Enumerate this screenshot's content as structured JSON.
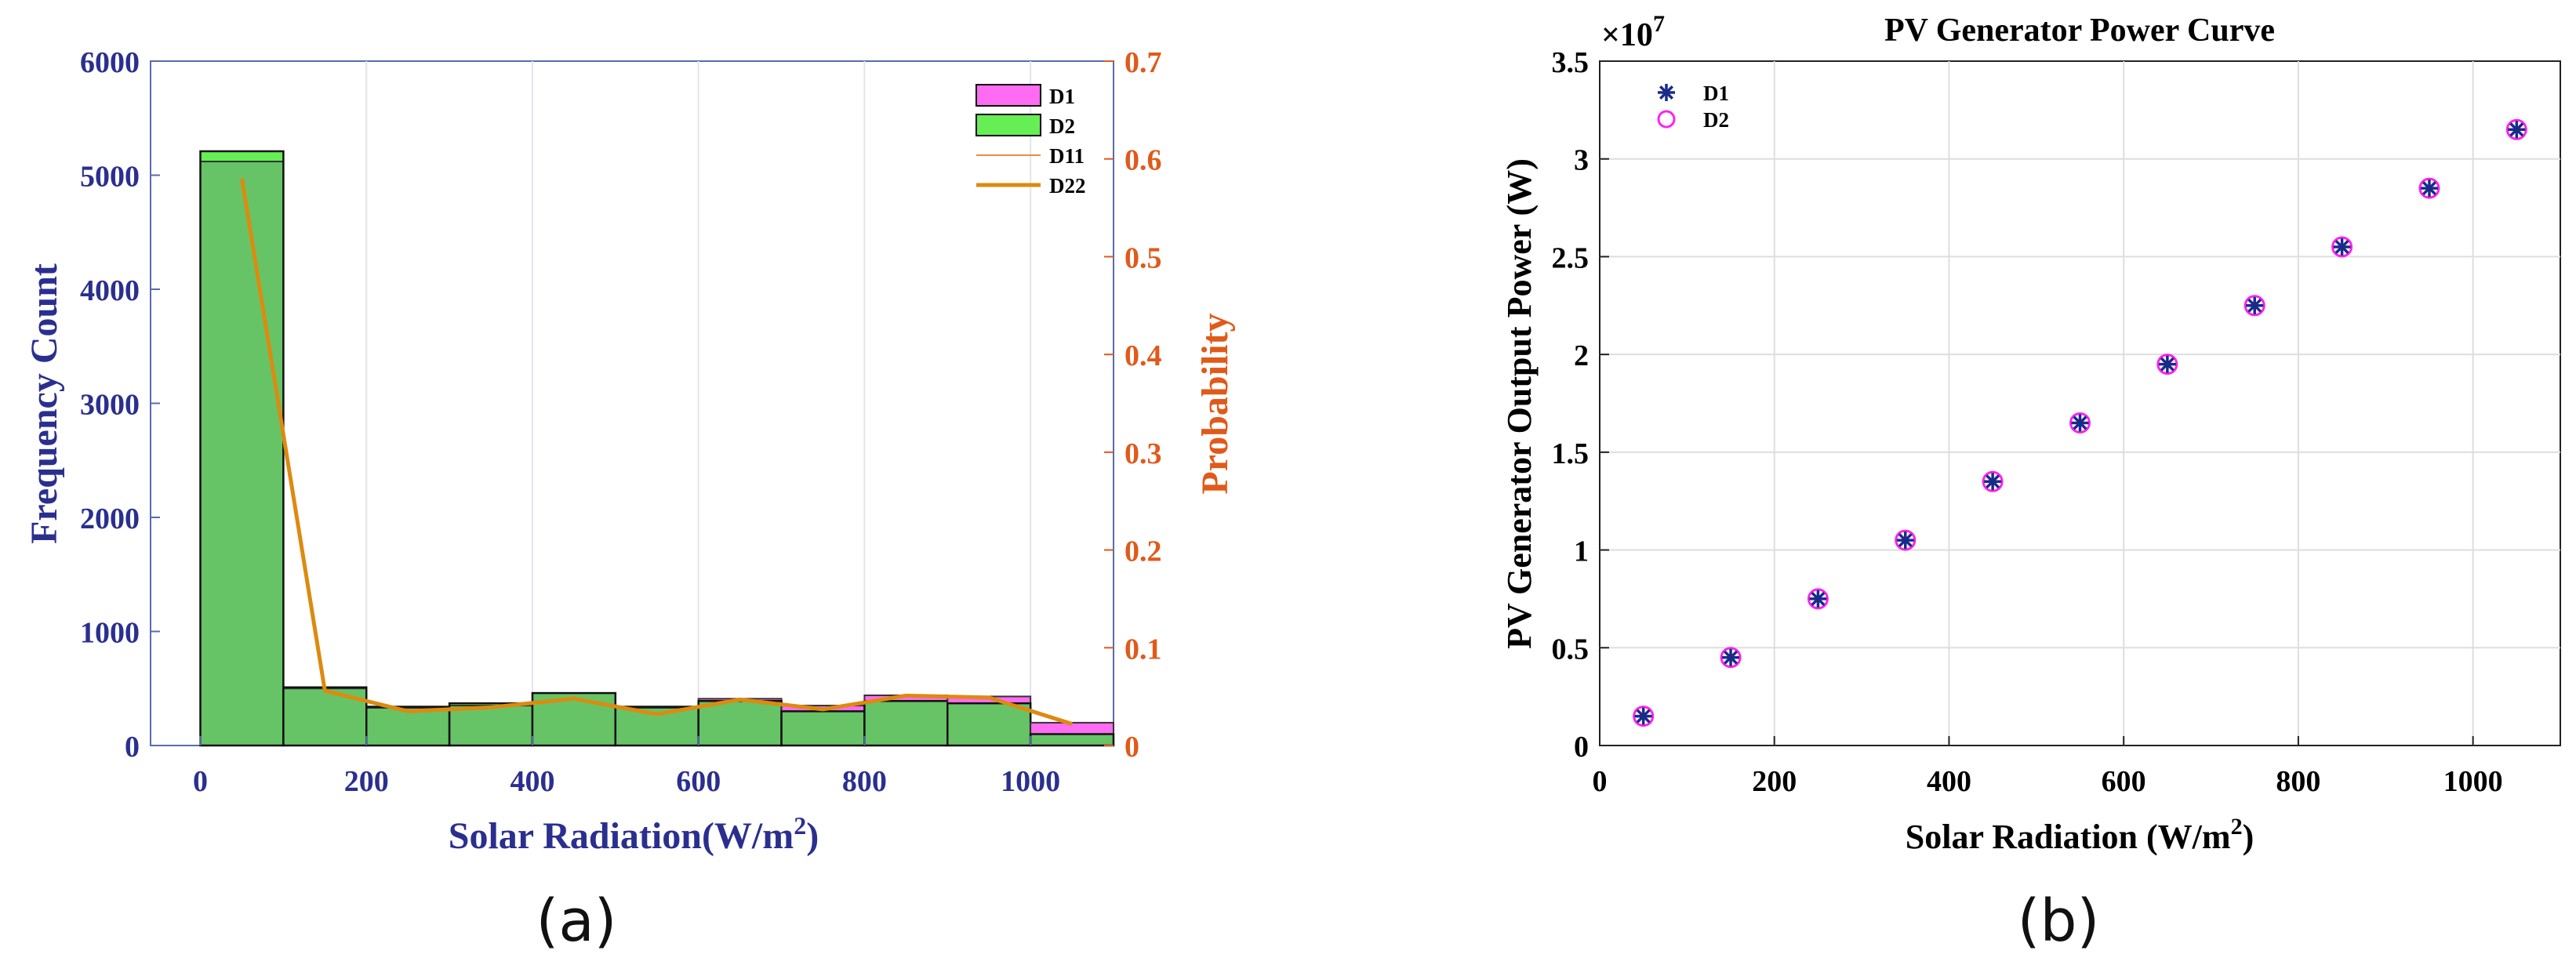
{
  "chart_data": [
    {
      "type": "bar",
      "panel_caption": "(a)",
      "xlabel": "Solar Radiation(W/m",
      "xlabel_sup": "2",
      "xlabel_close": ")",
      "ylabel": "Frequency Count",
      "y2label": "Probability",
      "xlim": [
        -60,
        1100
      ],
      "ylim": [
        0,
        6000
      ],
      "y2lim": [
        0,
        0.7
      ],
      "xticks": [
        "0",
        "200",
        "400",
        "600",
        "800",
        "1000"
      ],
      "yticks": [
        "0",
        "1000",
        "2000",
        "3000",
        "4000",
        "5000",
        "6000"
      ],
      "y2ticks": [
        "0",
        "0.1",
        "0.2",
        "0.3",
        "0.4",
        "0.5",
        "0.6",
        "0.7"
      ],
      "bin_edges": [
        0,
        100,
        200,
        300,
        400,
        500,
        600,
        700,
        800,
        900,
        1000,
        1100
      ],
      "series": [
        {
          "name": "D1",
          "kind": "histogram",
          "color": "#ff6bf3",
          "values": [
            5120,
            500,
            330,
            350,
            460,
            330,
            410,
            350,
            440,
            430,
            200
          ]
        },
        {
          "name": "D2",
          "kind": "histogram",
          "color": "#66ee55",
          "values": [
            5210,
            510,
            340,
            370,
            460,
            340,
            390,
            300,
            390,
            370,
            100
          ]
        },
        {
          "name": "D11",
          "kind": "line",
          "axis": "right",
          "color": "#f08a3c",
          "x": [
            50,
            150,
            250,
            350,
            450,
            550,
            650,
            750,
            850,
            950,
            1050
          ],
          "values": [
            0.58,
            0.055,
            0.034,
            0.039,
            0.047,
            0.031,
            0.046,
            0.036,
            0.05,
            0.048,
            0.021
          ]
        },
        {
          "name": "D22",
          "kind": "line",
          "axis": "right",
          "color": "#dd8a10",
          "x": [
            50,
            150,
            250,
            350,
            450,
            550,
            650,
            750,
            850,
            950,
            1050
          ],
          "values": [
            0.58,
            0.056,
            0.035,
            0.039,
            0.048,
            0.032,
            0.047,
            0.037,
            0.051,
            0.049,
            0.022
          ]
        }
      ],
      "overlap_color": "#66c466",
      "legend": [
        "D1",
        "D2",
        "D11",
        "D22"
      ],
      "legend_position": "top-right",
      "grid": true
    },
    {
      "type": "scatter",
      "panel_caption": "(b)",
      "title": "PV Generator Power Curve",
      "xlabel": "Solar Radiation (W/m",
      "xlabel_sup": "2",
      "xlabel_close": ")",
      "ylabel": "PV Generator Output Power (W)",
      "exponent_base": "×10",
      "exponent": "7",
      "xlim": [
        0,
        1100
      ],
      "ylim": [
        0,
        3.5
      ],
      "xticks": [
        "0",
        "200",
        "400",
        "600",
        "800",
        "1000"
      ],
      "yticks": [
        "0",
        "0.5",
        "1",
        "1.5",
        "2",
        "2.5",
        "3",
        "3.5"
      ],
      "series": [
        {
          "name": "D1",
          "marker": "asterisk",
          "color": "#1a2a8a",
          "x": [
            50,
            150,
            250,
            350,
            450,
            550,
            650,
            750,
            850,
            950,
            1050
          ],
          "y": [
            0.15,
            0.45,
            0.75,
            1.05,
            1.35,
            1.65,
            1.95,
            2.25,
            2.55,
            2.85,
            3.15
          ]
        },
        {
          "name": "D2",
          "marker": "circle",
          "color": "#ff22ee",
          "x": [
            50,
            150,
            250,
            350,
            450,
            550,
            650,
            750,
            850,
            950,
            1050
          ],
          "y": [
            0.15,
            0.45,
            0.75,
            1.05,
            1.35,
            1.65,
            1.95,
            2.25,
            2.55,
            2.85,
            3.15
          ]
        }
      ],
      "legend": [
        "D1",
        "D2"
      ],
      "legend_position": "top-left",
      "grid": true
    }
  ]
}
